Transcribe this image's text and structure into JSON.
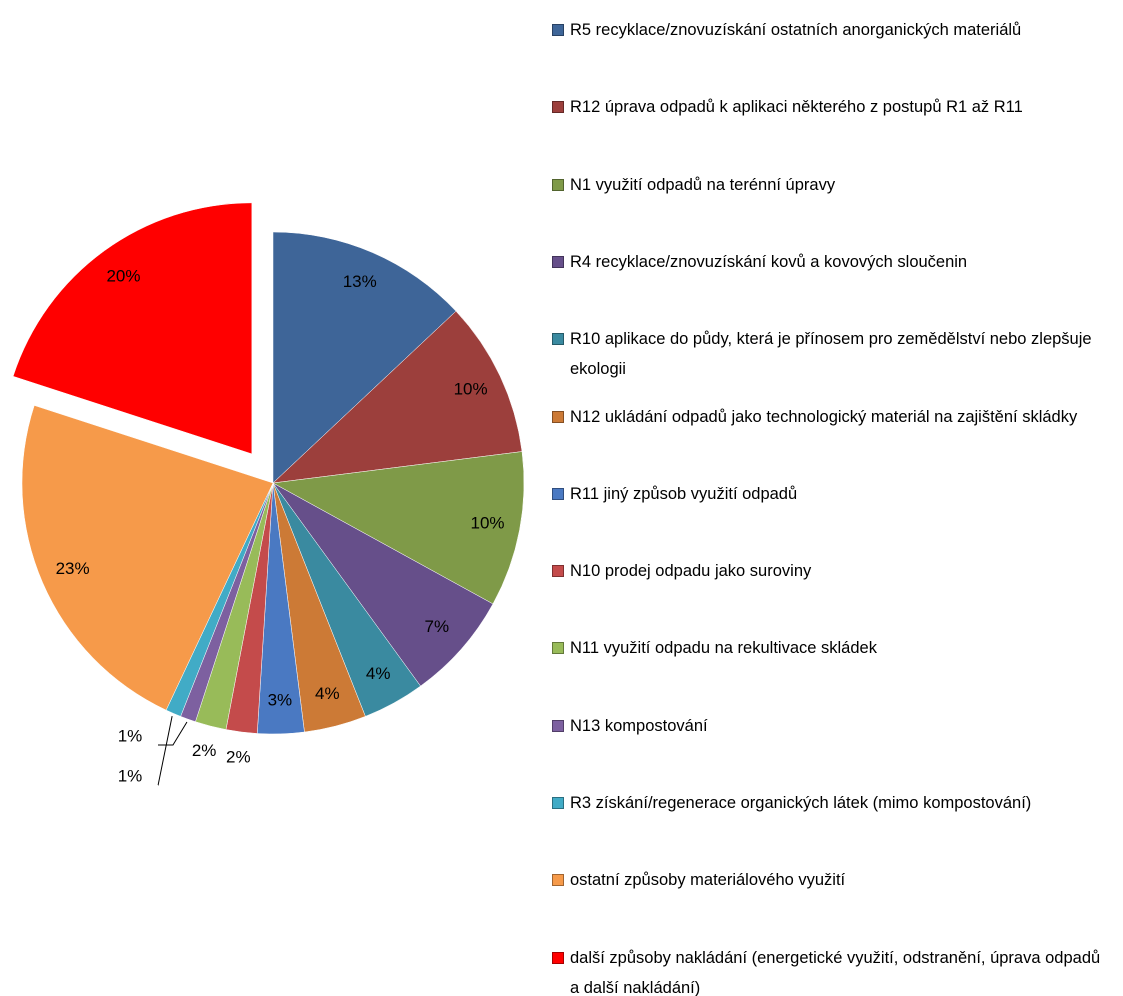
{
  "chart_data": {
    "type": "pie",
    "categories": [
      "R5 recyklace/znovuzískání ostatních anorganických materiálů",
      "R12 úprava odpadů k aplikaci některého z postupů R1 až R11",
      "N1 využití odpadů na terénní úpravy",
      "R4 recyklace/znovuzískání kovů a kovových sloučenin",
      "R10 aplikace do půdy, která je přínosem pro zemědělství nebo zlepšuje ekologii",
      "N12 ukládání odpadů jako technologický materiál na zajištění skládky",
      "R11 jiný způsob využití odpadů",
      "N10 prodej odpadu jako suroviny",
      "N11 využití odpadu na rekultivace skládek",
      "N13 kompostování",
      "R3 získání/regenerace organických látek (mimo kompostování)",
      "ostatní způsoby materiálového využití",
      "další způsoby nakládání (energetické využití, odstranění, úprava odpadů a další nakládání)"
    ],
    "values": [
      13,
      10,
      10,
      7,
      4,
      4,
      3,
      2,
      2,
      1,
      1,
      23,
      20
    ],
    "value_labels": [
      "13%",
      "10%",
      "10%",
      "7%",
      "4%",
      "4%",
      "3%",
      "2%",
      "2%",
      "1%",
      "1%",
      "23%",
      "20%"
    ],
    "colors": [
      "#3e6598",
      "#9c3f3c",
      "#7f9a48",
      "#664f8a",
      "#3a8aa0",
      "#cc7a36",
      "#4a79c2",
      "#c44b4b",
      "#98bb59",
      "#7d60a0",
      "#41abc6",
      "#f69a4a",
      "#ff0000"
    ],
    "explode": [
      12
    ],
    "legend": "right"
  }
}
